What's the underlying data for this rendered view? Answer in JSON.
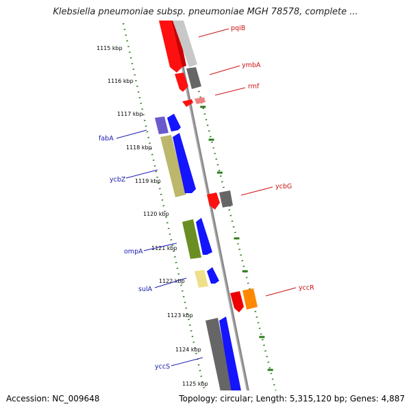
{
  "title": "Klebsiella pneumoniae subsp. pneumoniae MGH 78578, complete ...",
  "accession": "Accession: NC_009648",
  "summary": "Topology: circular; Length: 5,315,120 bp; Genes: 4,887",
  "colors": {
    "backbone": "#888888",
    "tick": "#2a7a1a",
    "forward_label": "#1a1ab0",
    "reverse_label": "#cc1111"
  },
  "kbp_ticks": [
    {
      "label": "1115 kbp"
    },
    {
      "label": "1116 kbp"
    },
    {
      "label": "1117 kbp"
    },
    {
      "label": "1118 kbp"
    },
    {
      "label": "1119 kbp"
    },
    {
      "label": "1120 kbp"
    },
    {
      "label": "1121 kbp"
    },
    {
      "label": "1122 kbp"
    },
    {
      "label": "1123 kbp"
    },
    {
      "label": "1124 kbp"
    },
    {
      "label": "1125 kbp"
    }
  ],
  "genes_left": [
    {
      "name": "fabA"
    },
    {
      "name": "ycbZ"
    },
    {
      "name": "ompA"
    },
    {
      "name": "sulA"
    },
    {
      "name": "yccS"
    }
  ],
  "genes_right": [
    {
      "name": "pqiB"
    },
    {
      "name": "ymbA"
    },
    {
      "name": "rmf"
    },
    {
      "name": "ycbG"
    },
    {
      "name": "yccR"
    }
  ]
}
